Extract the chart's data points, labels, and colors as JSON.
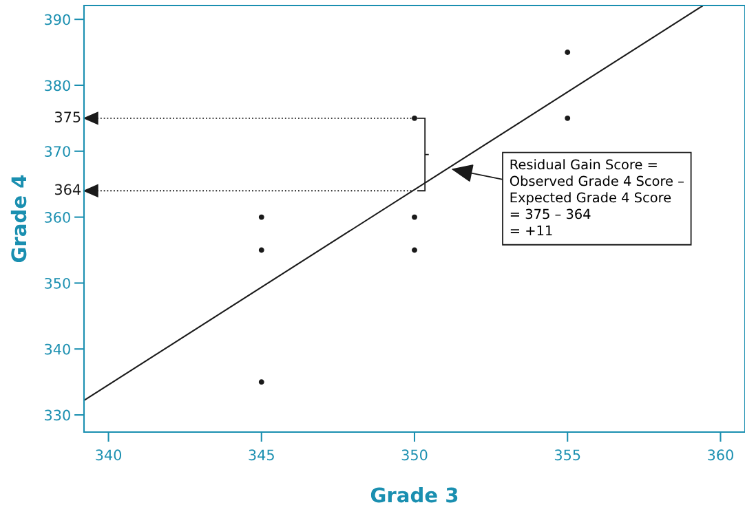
{
  "chart_data": {
    "type": "scatter",
    "xlabel": "Grade 3",
    "ylabel": "Grade 4",
    "xlim": [
      339.2,
      360.8
    ],
    "ylim": [
      327.4,
      392.1
    ],
    "xticks": [
      340,
      345,
      350,
      355,
      360
    ],
    "yticks": [
      330,
      340,
      350,
      360,
      370,
      380,
      390
    ],
    "grid": false,
    "series": [
      {
        "marker": "circle",
        "color": "#1a1a1a",
        "x": [
          345,
          345,
          345,
          350,
          350,
          350,
          355,
          355
        ],
        "values": [
          360,
          355,
          335,
          375,
          360,
          355,
          385,
          375
        ]
      },
      {
        "type": "line",
        "color": "#1a1a1a",
        "x": [
          339.2,
          359.4
        ],
        "values": [
          332.2,
          392.0
        ]
      }
    ],
    "ref_lines": [
      {
        "axis": "y",
        "value": 375,
        "label": "375",
        "color": "#1a1a1a",
        "line_style": "dotted"
      },
      {
        "axis": "y",
        "value": 364,
        "label": "364",
        "color": "#1a1a1a",
        "line_style": "dotted"
      }
    ],
    "annotations": [
      {
        "text": "Residual Gain Score =\nObserved Grade 4 Score –\nExpected Grade 4 Score\n= 375 – 364\n= +11",
        "x": 351.2,
        "y": 367.3
      }
    ]
  }
}
